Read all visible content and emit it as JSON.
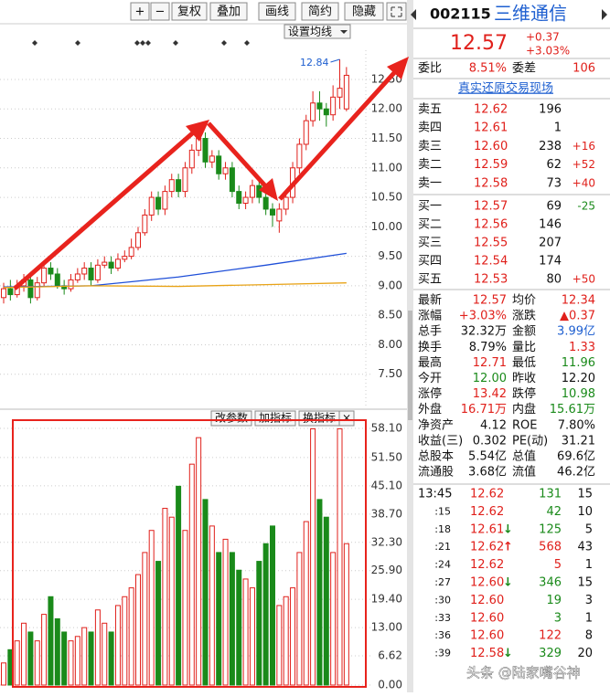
{
  "toolbar": [
    "+",
    "−",
    "复权",
    "叠加",
    "画线",
    "简约",
    "隐藏"
  ],
  "ma_button": "设置均线",
  "volume_buttons": [
    "改参数",
    "加指标",
    "换指标",
    "×"
  ],
  "quote": {
    "code": "002115",
    "name": "三维通信",
    "price": "12.57",
    "change": "+0.37",
    "pct": "+3.03%",
    "weibi_label": "委比",
    "weibi": "8.51%",
    "weicha_label": "委差",
    "weicha": "106",
    "link": "真实还原交易现场"
  },
  "order_book": [
    {
      "label": "卖五",
      "price": "12.62",
      "volume": "196"
    },
    {
      "label": "卖四",
      "price": "12.61",
      "volume": "1"
    },
    {
      "label": "卖三",
      "price": "12.60",
      "volume": "238",
      "delta": "+16"
    },
    {
      "label": "卖二",
      "price": "12.59",
      "volume": "62",
      "delta": "+52"
    },
    {
      "label": "卖一",
      "price": "12.58",
      "volume": "73",
      "delta": "+40"
    },
    {
      "label": "买一",
      "price": "12.57",
      "volume": "69",
      "delta": "-25"
    },
    {
      "label": "买二",
      "price": "12.56",
      "volume": "146"
    },
    {
      "label": "买三",
      "price": "12.55",
      "volume": "207"
    },
    {
      "label": "买四",
      "price": "12.54",
      "volume": "174"
    },
    {
      "label": "买五",
      "price": "12.53",
      "volume": "80",
      "delta": "+50"
    }
  ],
  "stats": [
    [
      "最新",
      "12.57",
      "均价",
      "12.34"
    ],
    [
      "涨幅",
      "+3.03%",
      "涨跌",
      "▲0.37"
    ],
    [
      "总手",
      "32.32万",
      "金额",
      "3.99亿"
    ],
    [
      "换手",
      "8.79%",
      "量比",
      "1.33"
    ],
    [
      "最高",
      "12.71",
      "最低",
      "11.96"
    ],
    [
      "今开",
      "12.00",
      "昨收",
      "12.20"
    ],
    [
      "涨停",
      "13.42",
      "跌停",
      "10.98"
    ],
    [
      "外盘",
      "16.71万",
      "内盘",
      "15.61万"
    ],
    [
      "净资产",
      "4.12",
      "ROE",
      "7.80%"
    ],
    [
      "收益(三)",
      "0.302",
      "PE(动)",
      "31.21"
    ],
    [
      "总股本",
      "5.54亿",
      "总值",
      "69.6亿"
    ],
    [
      "流通股",
      "3.68亿",
      "流值",
      "46.2亿"
    ]
  ],
  "trades": [
    {
      "time": "13:45",
      "price": "12.62",
      "volume": "131",
      "count": "15",
      "side": "sell"
    },
    {
      "time": ":15",
      "price": "12.62",
      "volume": "42",
      "count": "10",
      "side": "sell"
    },
    {
      "time": ":18",
      "price": "12.61",
      "arrow": "↓",
      "volume": "125",
      "count": "5",
      "side": "sell"
    },
    {
      "time": ":21",
      "price": "12.62",
      "arrow": "↑",
      "volume": "568",
      "count": "43",
      "side": "buy"
    },
    {
      "time": ":24",
      "price": "12.62",
      "volume": "5",
      "count": "1",
      "side": "buy"
    },
    {
      "time": ":27",
      "price": "12.60",
      "arrow": "↓",
      "volume": "346",
      "count": "15",
      "side": "sell"
    },
    {
      "time": ":30",
      "price": "12.60",
      "volume": "19",
      "count": "3",
      "side": "sell"
    },
    {
      "time": ":33",
      "price": "12.60",
      "volume": "3",
      "count": "1",
      "side": "sell"
    },
    {
      "time": ":36",
      "price": "12.60",
      "volume": "122",
      "count": "8",
      "side": "buy"
    },
    {
      "time": ":39",
      "price": "12.58",
      "arrow": "↓",
      "volume": "329",
      "count": "20",
      "side": "sell"
    }
  ],
  "watermark": "头条 @陆家嘴谷神",
  "chart_data": [
    {
      "type": "candlestick",
      "annotation": "12.84",
      "open": [
        8.8,
        8.95,
        8.85,
        9.0,
        9.1,
        8.8,
        9.05,
        9.3,
        9.2,
        9.0,
        8.95,
        9.1,
        9.2,
        9.3,
        9.1,
        9.35,
        9.4,
        9.3,
        9.45,
        9.5,
        9.65,
        9.9,
        10.2,
        10.5,
        10.3,
        10.6,
        10.8,
        10.6,
        11.0,
        11.3,
        11.5,
        11.1,
        11.2,
        10.9,
        11.0,
        10.6,
        10.4,
        10.5,
        10.7,
        10.5,
        10.3,
        10.1,
        10.3,
        10.5,
        11.0,
        11.4,
        11.8,
        12.1,
        12.0,
        11.9,
        12.2,
        12.0
      ],
      "high": [
        9.05,
        9.1,
        9.1,
        9.2,
        9.2,
        9.15,
        9.4,
        9.4,
        9.3,
        9.1,
        9.2,
        9.3,
        9.4,
        9.4,
        9.45,
        9.5,
        9.5,
        9.55,
        9.6,
        9.8,
        10.0,
        10.3,
        10.6,
        10.6,
        10.7,
        10.9,
        10.9,
        11.1,
        11.4,
        11.7,
        11.6,
        11.3,
        11.3,
        11.1,
        11.1,
        10.7,
        10.6,
        10.8,
        10.8,
        10.6,
        10.4,
        10.4,
        10.6,
        11.1,
        11.5,
        11.9,
        12.3,
        12.3,
        12.1,
        12.4,
        12.84,
        12.71
      ],
      "low": [
        8.7,
        8.75,
        8.8,
        8.9,
        8.7,
        8.75,
        9.0,
        9.1,
        8.95,
        8.85,
        8.9,
        9.05,
        9.1,
        9.0,
        9.05,
        9.3,
        9.2,
        9.25,
        9.4,
        9.45,
        9.6,
        9.85,
        10.1,
        10.2,
        10.2,
        10.5,
        10.5,
        10.5,
        10.9,
        11.2,
        11.0,
        11.0,
        10.8,
        10.8,
        10.5,
        10.3,
        10.3,
        10.4,
        10.4,
        10.2,
        10.0,
        9.9,
        10.2,
        10.4,
        10.9,
        11.3,
        11.7,
        11.8,
        11.7,
        11.8,
        12.0,
        11.96
      ],
      "close": [
        8.95,
        8.85,
        9.0,
        9.1,
        8.8,
        9.05,
        9.3,
        9.2,
        9.0,
        8.95,
        9.1,
        9.2,
        9.3,
        9.1,
        9.35,
        9.4,
        9.3,
        9.45,
        9.5,
        9.65,
        9.9,
        10.2,
        10.5,
        10.3,
        10.6,
        10.8,
        10.6,
        11.0,
        11.3,
        11.5,
        11.1,
        11.2,
        10.9,
        11.0,
        10.6,
        10.4,
        10.5,
        10.7,
        10.5,
        10.3,
        10.2,
        10.3,
        10.5,
        11.0,
        11.4,
        11.8,
        12.1,
        12.0,
        11.9,
        12.2,
        12.35,
        12.57
      ],
      "up_color": "#e0201b",
      "down_color": "#1a8a1a",
      "ma": [
        {
          "color": "#1f4fd8",
          "x": [
            0,
            13,
            26,
            39,
            51
          ],
          "values": [
            8.98,
            9.0,
            9.15,
            9.35,
            9.55
          ]
        },
        {
          "color": "#e8a317",
          "x": [
            0,
            13,
            26,
            39,
            51
          ],
          "values": [
            8.97,
            9.0,
            8.99,
            9.02,
            9.05
          ]
        }
      ],
      "ylim": [
        7.0,
        13.15
      ],
      "yticks": [
        {
          "value": 12.5,
          "label": "12.50"
        },
        {
          "value": 12,
          "label": "12.00"
        },
        {
          "value": 11.5,
          "label": "11.50"
        },
        {
          "value": 11,
          "label": "11.00"
        },
        {
          "value": 10.5,
          "label": "10.50"
        },
        {
          "value": 10,
          "label": "10.00"
        },
        {
          "value": 9.5,
          "label": "9.50"
        },
        {
          "value": 9,
          "label": "9.00"
        },
        {
          "value": 8.5,
          "label": "8.50"
        },
        {
          "value": 8,
          "label": "8.00"
        },
        {
          "value": 7.5,
          "label": "7.50"
        }
      ],
      "grid": true
    },
    {
      "type": "volume",
      "values": [
        5,
        8,
        10,
        14,
        12,
        10,
        16,
        20,
        15,
        12,
        10,
        11,
        13,
        12,
        17,
        14,
        12,
        18,
        20,
        22,
        25,
        30,
        35,
        28,
        40,
        38,
        45,
        35,
        50,
        56,
        42,
        36,
        30,
        33,
        30,
        26,
        24,
        22,
        28,
        32,
        36,
        18,
        20,
        22,
        30,
        37,
        58,
        42,
        38,
        30,
        58,
        32
      ],
      "ylim": [
        0,
        58.1
      ],
      "yticks": [
        {
          "value": 58.1,
          "label": "58.10"
        },
        {
          "value": 51.5,
          "label": "51.50"
        },
        {
          "value": 45.1,
          "label": "45.10"
        },
        {
          "value": 38.7,
          "label": "38.70"
        },
        {
          "value": 32.3,
          "label": "32.30"
        },
        {
          "value": 25.9,
          "label": "25.90"
        },
        {
          "value": 19.4,
          "label": "19.40"
        },
        {
          "value": 13,
          "label": "13.00"
        },
        6.62,
        {
          "value": 0,
          "label": "0.00"
        }
      ]
    }
  ]
}
